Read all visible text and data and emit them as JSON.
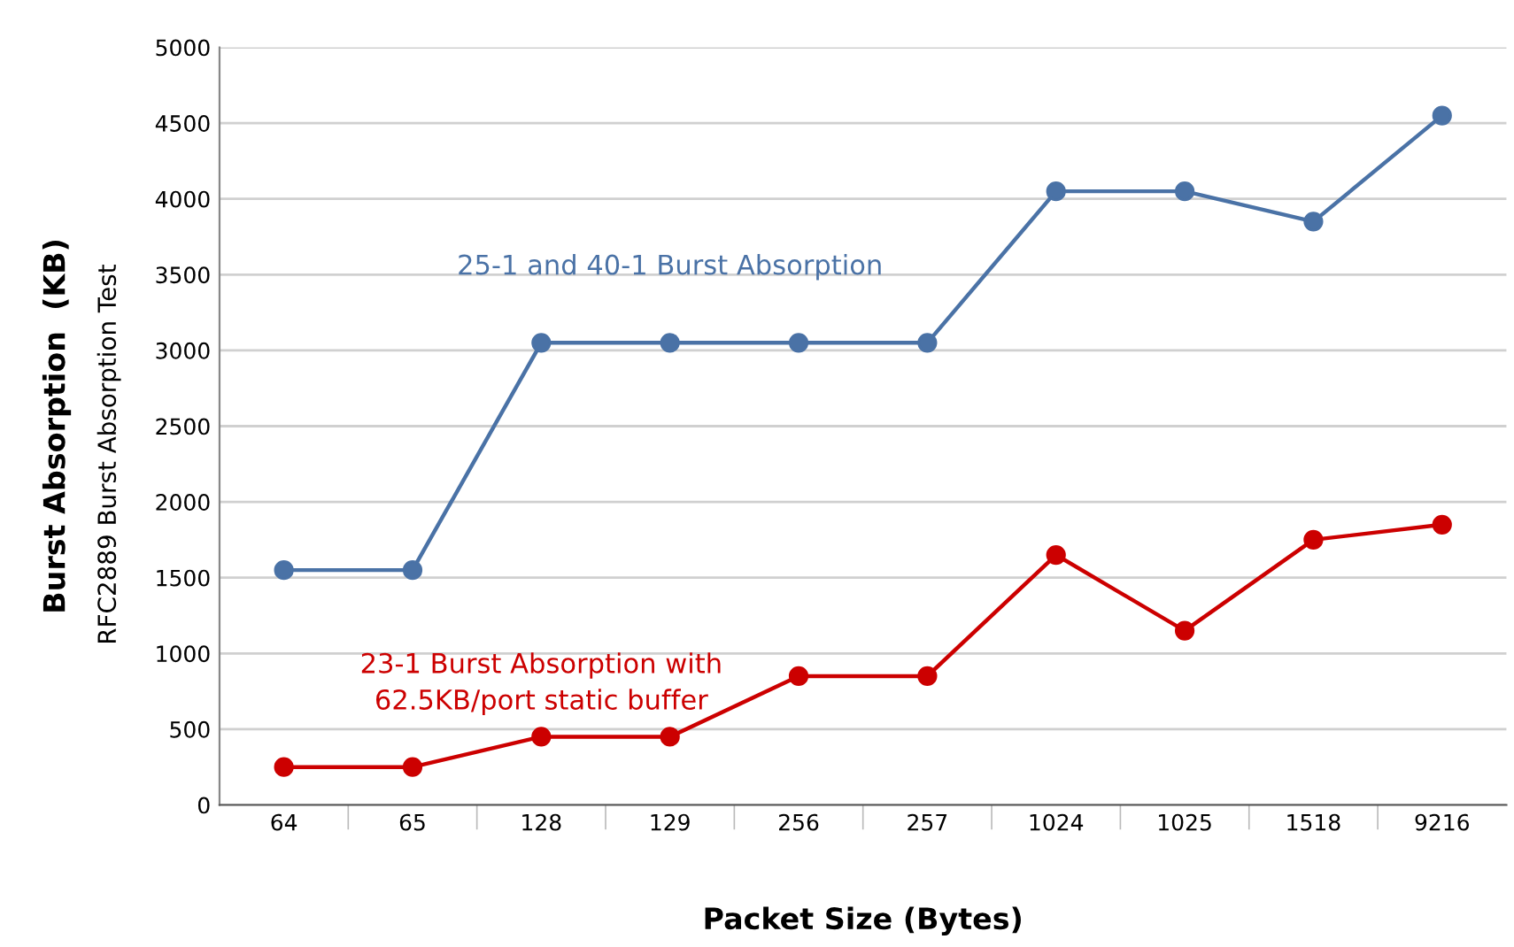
{
  "chart_data": {
    "type": "line",
    "categories": [
      "64",
      "65",
      "128",
      "129",
      "256",
      "257",
      "1024",
      "1025",
      "1518",
      "9216"
    ],
    "series": [
      {
        "color": "#4a72a6",
        "values": [
          1550,
          1550,
          3050,
          3050,
          3050,
          3050,
          4050,
          4050,
          3850,
          4550
        ]
      },
      {
        "color": "#cc0000",
        "values": [
          250,
          250,
          450,
          450,
          850,
          850,
          1650,
          1150,
          1750,
          1850
        ]
      }
    ],
    "xlabel": "Packet Size (Bytes)",
    "ylabel": "Burst Absorption  (KB)",
    "annotations": [
      "25-1 and 40-1 Burst Absorption",
      "23-1 Burst Absorption with\n62.5KB/port static buffer",
      "RFC2889 Burst Absorption Test"
    ],
    "ylim": [
      0,
      5000
    ],
    "yticks": [
      0,
      500,
      1000,
      1500,
      2000,
      2500,
      3000,
      3500,
      4000,
      4500,
      5000
    ],
    "grid": "y",
    "marker": "circle",
    "line_style": "solid",
    "legend": false
  }
}
